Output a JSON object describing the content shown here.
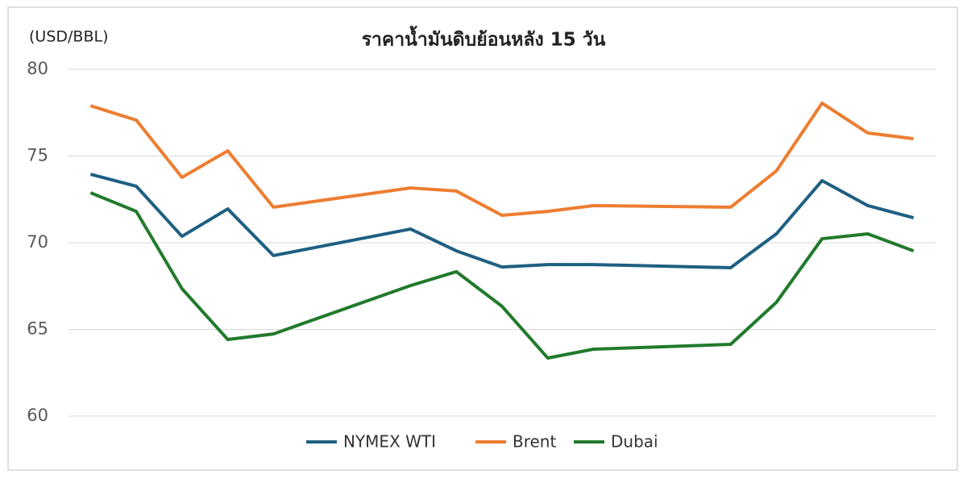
{
  "chart_data": {
    "type": "line",
    "title": "ราคาน้ำมันดิบย้อนหลัง 15 วัน",
    "y_label": "(USD/BBL)",
    "categories": [
      null,
      null,
      null,
      null,
      null,
      null,
      null,
      null,
      null,
      null,
      null,
      null,
      null,
      null,
      null,
      null,
      null,
      null,
      null
    ],
    "series": [
      {
        "name": "NYMEX WTI",
        "color": "#1f5f82",
        "values": [
          73.95,
          73.26,
          70.37,
          71.95,
          69.26,
          null,
          null,
          70.79,
          69.53,
          68.6,
          68.74,
          68.74,
          null,
          null,
          68.56,
          70.51,
          73.58,
          72.14,
          71.44
        ]
      },
      {
        "name": "Brent",
        "color": "#ed7d31",
        "values": [
          77.9,
          77.07,
          73.77,
          75.3,
          72.05,
          null,
          null,
          73.16,
          72.98,
          71.58,
          71.81,
          72.14,
          null,
          null,
          72.05,
          74.14,
          78.05,
          76.33,
          76.0
        ]
      },
      {
        "name": "Dubai",
        "color": "#217a2b",
        "values": [
          72.88,
          71.81,
          67.35,
          64.42,
          64.74,
          null,
          null,
          67.53,
          68.33,
          66.33,
          63.35,
          63.86,
          null,
          null,
          64.14,
          66.56,
          70.23,
          70.51,
          69.53
        ]
      }
    ],
    "span_gaps": true,
    "ylim": [
      60,
      80
    ],
    "yticks": [
      60,
      65,
      70,
      75,
      80
    ],
    "grid": true,
    "legend": "bottom"
  }
}
